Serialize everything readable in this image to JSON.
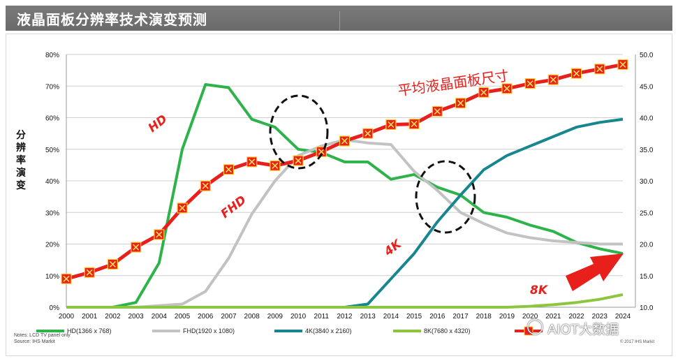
{
  "header": {
    "title": "液晶面板分辨率技术演变预测"
  },
  "chart_data": {
    "type": "line",
    "title": "",
    "ylabel": "分辨率演变",
    "categories": [
      "2000",
      "2001",
      "2002",
      "2003",
      "2004",
      "2005",
      "2006",
      "2007",
      "2008",
      "2009",
      "2010",
      "2011",
      "2012",
      "2013",
      "2014",
      "2015",
      "2016",
      "2017",
      "2018",
      "2019",
      "2020",
      "2021",
      "2022",
      "2023",
      "2024"
    ],
    "y_left": {
      "min": 0,
      "max": 80,
      "ticks": [
        "0%",
        "10%",
        "20%",
        "30%",
        "40%",
        "50%",
        "60%",
        "70%",
        "80%"
      ]
    },
    "y_right": {
      "min": 10,
      "max": 50,
      "ticks": [
        "10.0",
        "15.0",
        "20.0",
        "25.0",
        "30.0",
        "35.0",
        "40.0",
        "45.0",
        "50.0"
      ]
    },
    "grid": true,
    "legend_position": "bottom",
    "series": [
      {
        "name": "HD(1366 x 768)",
        "axis": "left",
        "color": "#2db34a",
        "values": [
          0,
          0,
          0,
          1.5,
          14,
          50,
          70.5,
          69.5,
          59.5,
          57,
          50,
          49,
          46,
          46,
          40.5,
          42,
          38,
          35.5,
          30,
          28.5,
          26,
          24,
          20.5,
          18.5,
          17
        ]
      },
      {
        "name": "FHD(1920 x 1080)",
        "axis": "left",
        "color": "#c2c2c2",
        "values": [
          0,
          0,
          0,
          0,
          0.5,
          1,
          5,
          15.5,
          29.5,
          40,
          48,
          51,
          53,
          52,
          51.5,
          43,
          37,
          30,
          26.5,
          23.5,
          22,
          21,
          20.5,
          20,
          20
        ]
      },
      {
        "name": "4K(3840 x 2160)",
        "axis": "left",
        "color": "#17868e",
        "values": [
          0,
          0,
          0,
          0,
          0,
          0,
          0,
          0,
          0,
          0,
          0,
          0,
          0,
          1,
          9,
          17,
          27,
          35.5,
          43.5,
          48,
          51,
          54,
          57,
          58.5,
          59.5
        ]
      },
      {
        "name": "8K(7680 x 4320)",
        "axis": "left",
        "color": "#8cc63f",
        "values": [
          0,
          0,
          0,
          0,
          0,
          0,
          0,
          0,
          0,
          0,
          0,
          0,
          0,
          0,
          0,
          0,
          0,
          0,
          0,
          0,
          0.3,
          0.8,
          1.5,
          2.5,
          4
        ]
      },
      {
        "name": "平均液晶面板尺寸",
        "axis": "right",
        "color": "#e8201b",
        "values": [
          14.5,
          15.5,
          16.8,
          19.5,
          21.5,
          25.7,
          29.2,
          31.8,
          33,
          32.4,
          33.2,
          34.6,
          36.3,
          37.5,
          38.9,
          39,
          41,
          42.3,
          44,
          44.6,
          45.4,
          46,
          47,
          47.7,
          48.4
        ]
      }
    ],
    "legend": [
      "HD(1366 x 768)",
      "FHD(1920 x 1080)",
      "4K(3840 x 2160)",
      "8K(7680 x 4320)",
      ""
    ],
    "annotations": [
      "HD",
      "FHD",
      "4K",
      "8K",
      "平均液晶面板尺寸"
    ]
  },
  "notes": {
    "line1": "Notes: LCD TV panel only",
    "line2": "Source: IHS Markit"
  },
  "copyright": "© 2017 IHS Markit",
  "watermark": "AIOT大数据"
}
